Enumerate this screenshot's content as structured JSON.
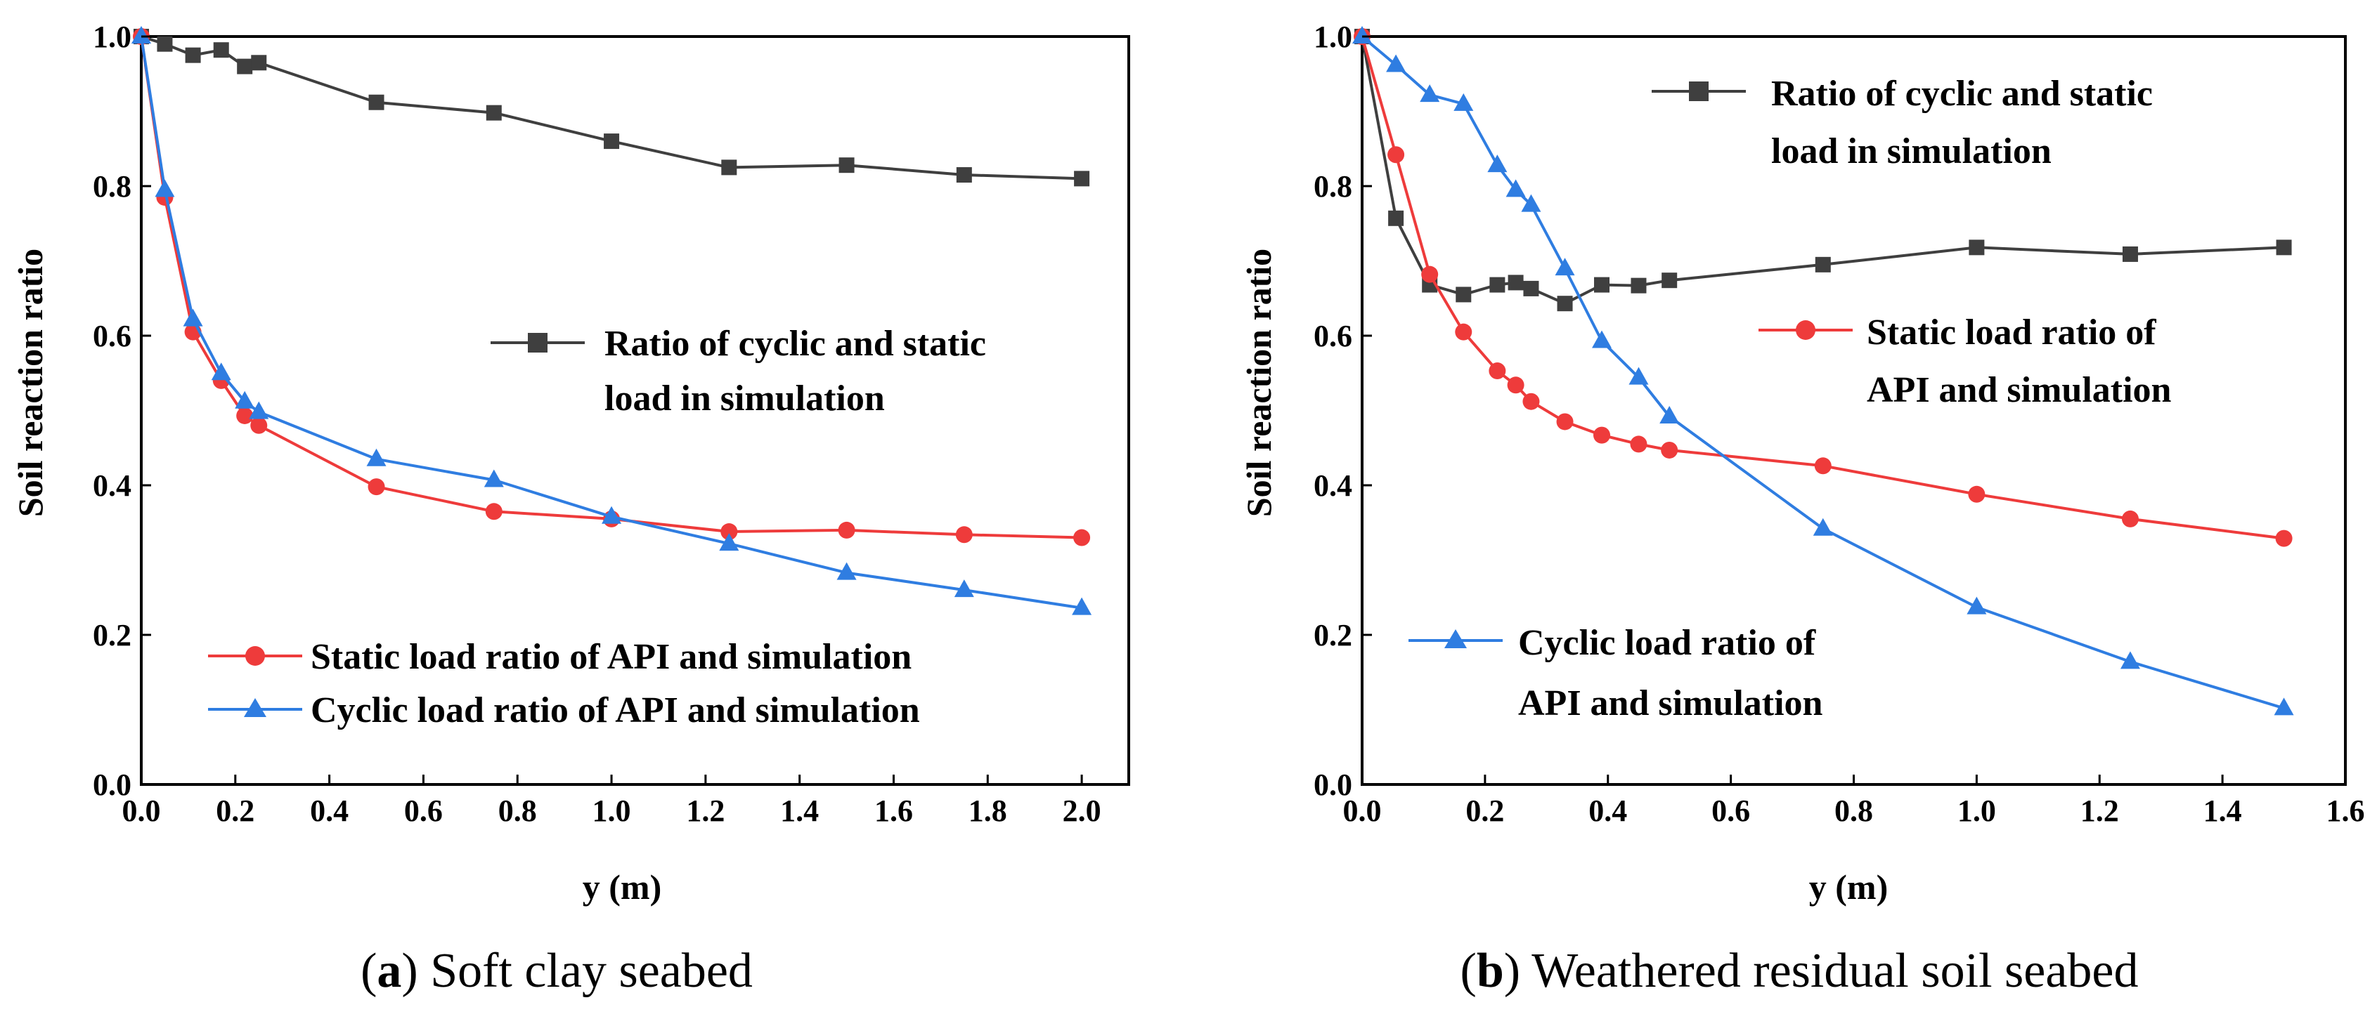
{
  "chart_data": [
    {
      "type": "line",
      "panel_label": "a",
      "caption": "Soft clay seabed",
      "xlabel": "y (m)",
      "ylabel": "Soil reaction ratio",
      "xlim": [
        0.0,
        2.1
      ],
      "ylim": [
        0.0,
        1.0
      ],
      "xticks": [
        "0.0",
        "0.2",
        "0.4",
        "0.6",
        "0.8",
        "1.0",
        "1.2",
        "1.4",
        "1.6",
        "1.8",
        "2.0"
      ],
      "yticks": [
        "0.0",
        "0.2",
        "0.4",
        "0.6",
        "0.8",
        "1.0"
      ],
      "grid": false,
      "series": [
        {
          "name": "Ratio of cyclic and static load in simulation",
          "legend_lines": [
            "Ratio of cyclic and static",
            "load in simulation"
          ],
          "color": "#3f3f3f",
          "marker": "square",
          "x": [
            0,
            0.05,
            0.11,
            0.17,
            0.22,
            0.25,
            0.5,
            0.75,
            1.0,
            1.25,
            1.5,
            1.75,
            2.0
          ],
          "y": [
            1.0,
            0.99,
            0.975,
            0.982,
            0.96,
            0.965,
            0.912,
            0.898,
            0.86,
            0.825,
            0.828,
            0.815,
            0.81
          ]
        },
        {
          "name": "Static load ratio of API and simulation",
          "legend_lines": [
            "Static load ratio of API and simulation"
          ],
          "color": "#ee3b3b",
          "marker": "circle",
          "x": [
            0,
            0.05,
            0.11,
            0.17,
            0.22,
            0.25,
            0.5,
            0.75,
            1.0,
            1.25,
            1.5,
            1.75,
            2.0
          ],
          "y": [
            1.0,
            0.785,
            0.605,
            0.54,
            0.493,
            0.48,
            0.398,
            0.365,
            0.355,
            0.338,
            0.34,
            0.334,
            0.33
          ]
        },
        {
          "name": "Cyclic load ratio of API and simulation",
          "legend_lines": [
            "Cyclic load ratio of API and simulation"
          ],
          "color": "#2f7de1",
          "marker": "triangle",
          "x": [
            0,
            0.05,
            0.11,
            0.17,
            0.22,
            0.25,
            0.5,
            0.75,
            1.0,
            1.25,
            1.5,
            1.75,
            2.0
          ],
          "y": [
            1.0,
            0.795,
            0.622,
            0.55,
            0.512,
            0.498,
            0.435,
            0.407,
            0.358,
            0.322,
            0.283,
            0.26,
            0.236
          ]
        }
      ]
    },
    {
      "type": "line",
      "panel_label": "b",
      "caption": "Weathered residual soil seabed",
      "xlabel": "y (m)",
      "ylabel": "Soil reaction ratio",
      "xlim": [
        0.0,
        1.6
      ],
      "ylim": [
        0.0,
        1.0
      ],
      "xticks": [
        "0.0",
        "0.2",
        "0.4",
        "0.6",
        "0.8",
        "1.0",
        "1.2",
        "1.4",
        "1.6"
      ],
      "yticks": [
        "0.0",
        "0.2",
        "0.4",
        "0.6",
        "0.8",
        "1.0"
      ],
      "grid": false,
      "series": [
        {
          "name": "Ratio of cyclic and static load in simulation",
          "legend_lines": [
            "Ratio of cyclic and static",
            "load in simulation"
          ],
          "color": "#3f3f3f",
          "marker": "square",
          "x": [
            0,
            0.055,
            0.11,
            0.165,
            0.22,
            0.25,
            0.275,
            0.33,
            0.39,
            0.45,
            0.5,
            0.75,
            1.0,
            1.25,
            1.5
          ],
          "y": [
            1.0,
            0.757,
            0.668,
            0.655,
            0.668,
            0.671,
            0.663,
            0.643,
            0.668,
            0.667,
            0.674,
            0.695,
            0.718,
            0.709,
            0.718
          ]
        },
        {
          "name": "Static load ratio of API and simulation",
          "legend_lines": [
            "Static load ratio of",
            "API and simulation"
          ],
          "color": "#ee3b3b",
          "marker": "circle",
          "x": [
            0,
            0.055,
            0.11,
            0.165,
            0.22,
            0.25,
            0.275,
            0.33,
            0.39,
            0.45,
            0.5,
            0.75,
            1.0,
            1.25,
            1.5
          ],
          "y": [
            1.0,
            0.842,
            0.682,
            0.605,
            0.553,
            0.534,
            0.512,
            0.485,
            0.467,
            0.455,
            0.447,
            0.426,
            0.388,
            0.355,
            0.329
          ]
        },
        {
          "name": "Cyclic load ratio of API and simulation",
          "legend_lines": [
            "Cyclic load ratio of",
            "API and simulation"
          ],
          "color": "#2f7de1",
          "marker": "triangle",
          "x": [
            0,
            0.055,
            0.11,
            0.165,
            0.22,
            0.25,
            0.275,
            0.33,
            0.39,
            0.45,
            0.5,
            0.75,
            1.0,
            1.25,
            1.5
          ],
          "y": [
            1.0,
            0.962,
            0.922,
            0.91,
            0.828,
            0.795,
            0.775,
            0.69,
            0.593,
            0.544,
            0.492,
            0.342,
            0.237,
            0.164,
            0.102
          ]
        }
      ]
    }
  ]
}
